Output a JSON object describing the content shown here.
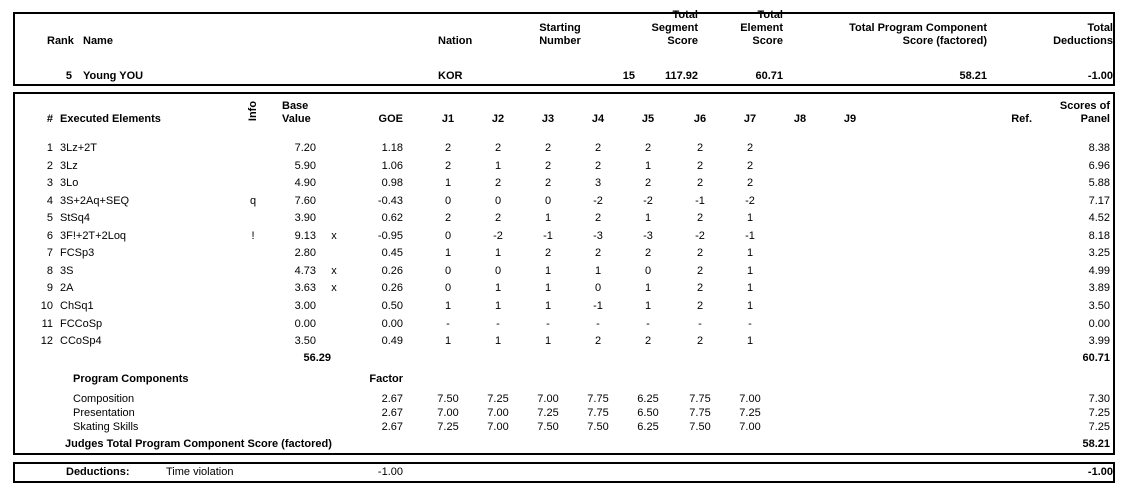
{
  "header": {
    "labels": {
      "rank": "Rank",
      "name": "Name",
      "nation": "Nation",
      "starting_number": "Starting\nNumber",
      "total_segment_score": "Total\nSegment\nScore",
      "total_element_score": "Total\nElement\nScore",
      "total_program_component_score": "Total Program Component\nScore (factored)",
      "total_deductions": "Total\nDeductions"
    },
    "competitor": {
      "rank": "5",
      "name": "Young YOU",
      "nation": "KOR",
      "starting_number": "15",
      "total_segment_score": "117.92",
      "total_element_score": "60.71",
      "total_program_component_score": "58.21",
      "total_deductions": "-1.00"
    }
  },
  "elements": {
    "headers": {
      "num": "#",
      "executed_elements": "Executed Elements",
      "info": "Info",
      "base_value": "Base\nValue",
      "goe": "GOE",
      "judges": [
        "J1",
        "J2",
        "J3",
        "J4",
        "J5",
        "J6",
        "J7",
        "J8",
        "J9"
      ],
      "ref": "Ref.",
      "scores_of_panel": "Scores of\nPanel"
    },
    "rows": [
      {
        "num": "1",
        "name": "3Lz+2T",
        "info": "",
        "base": "7.20",
        "x": "",
        "goe": "1.18",
        "judges": [
          "2",
          "2",
          "2",
          "2",
          "2",
          "2",
          "2",
          "",
          ""
        ],
        "ref": "",
        "panel": "8.38"
      },
      {
        "num": "2",
        "name": "3Lz",
        "info": "",
        "base": "5.90",
        "x": "",
        "goe": "1.06",
        "judges": [
          "2",
          "1",
          "2",
          "2",
          "1",
          "2",
          "2",
          "",
          ""
        ],
        "ref": "",
        "panel": "6.96"
      },
      {
        "num": "3",
        "name": "3Lo",
        "info": "",
        "base": "4.90",
        "x": "",
        "goe": "0.98",
        "judges": [
          "1",
          "2",
          "2",
          "3",
          "2",
          "2",
          "2",
          "",
          ""
        ],
        "ref": "",
        "panel": "5.88"
      },
      {
        "num": "4",
        "name": "3S+2Aq+SEQ",
        "info": "q",
        "base": "7.60",
        "x": "",
        "goe": "-0.43",
        "judges": [
          "0",
          "0",
          "0",
          "-2",
          "-2",
          "-1",
          "-2",
          "",
          ""
        ],
        "ref": "",
        "panel": "7.17"
      },
      {
        "num": "5",
        "name": "StSq4",
        "info": "",
        "base": "3.90",
        "x": "",
        "goe": "0.62",
        "judges": [
          "2",
          "2",
          "1",
          "2",
          "1",
          "2",
          "1",
          "",
          ""
        ],
        "ref": "",
        "panel": "4.52"
      },
      {
        "num": "6",
        "name": "3F!+2T+2Loq",
        "info": "!",
        "base": "9.13",
        "x": "x",
        "goe": "-0.95",
        "judges": [
          "0",
          "-2",
          "-1",
          "-3",
          "-3",
          "-2",
          "-1",
          "",
          ""
        ],
        "ref": "",
        "panel": "8.18"
      },
      {
        "num": "7",
        "name": "FCSp3",
        "info": "",
        "base": "2.80",
        "x": "",
        "goe": "0.45",
        "judges": [
          "1",
          "1",
          "2",
          "2",
          "2",
          "2",
          "1",
          "",
          ""
        ],
        "ref": "",
        "panel": "3.25"
      },
      {
        "num": "8",
        "name": "3S",
        "info": "",
        "base": "4.73",
        "x": "x",
        "goe": "0.26",
        "judges": [
          "0",
          "0",
          "1",
          "1",
          "0",
          "2",
          "1",
          "",
          ""
        ],
        "ref": "",
        "panel": "4.99"
      },
      {
        "num": "9",
        "name": "2A",
        "info": "",
        "base": "3.63",
        "x": "x",
        "goe": "0.26",
        "judges": [
          "0",
          "1",
          "1",
          "0",
          "1",
          "2",
          "1",
          "",
          ""
        ],
        "ref": "",
        "panel": "3.89"
      },
      {
        "num": "10",
        "name": "ChSq1",
        "info": "",
        "base": "3.00",
        "x": "",
        "goe": "0.50",
        "judges": [
          "1",
          "1",
          "1",
          "-1",
          "1",
          "2",
          "1",
          "",
          ""
        ],
        "ref": "",
        "panel": "3.50"
      },
      {
        "num": "11",
        "name": "FCCoSp",
        "info": "",
        "base": "0.00",
        "x": "",
        "goe": "0.00",
        "judges": [
          "-",
          "-",
          "-",
          "-",
          "-",
          "-",
          "-",
          "",
          ""
        ],
        "ref": "",
        "panel": "0.00"
      },
      {
        "num": "12",
        "name": "CCoSp4",
        "info": "",
        "base": "3.50",
        "x": "",
        "goe": "0.49",
        "judges": [
          "1",
          "1",
          "1",
          "2",
          "2",
          "2",
          "1",
          "",
          ""
        ],
        "ref": "",
        "panel": "3.99"
      }
    ],
    "total_base_value": "56.29",
    "total_scores_of_panel": "60.71"
  },
  "components": {
    "title": "Program Components",
    "factor_label": "Factor",
    "rows": [
      {
        "name": "Composition",
        "factor": "2.67",
        "judges": [
          "7.50",
          "7.25",
          "7.00",
          "7.75",
          "6.25",
          "7.75",
          "7.00",
          "",
          ""
        ],
        "panel": "7.30"
      },
      {
        "name": "Presentation",
        "factor": "2.67",
        "judges": [
          "7.00",
          "7.00",
          "7.25",
          "7.75",
          "6.50",
          "7.75",
          "7.25",
          "",
          ""
        ],
        "panel": "7.25"
      },
      {
        "name": "Skating Skills",
        "factor": "2.67",
        "judges": [
          "7.25",
          "7.00",
          "7.50",
          "7.50",
          "6.25",
          "7.50",
          "7.00",
          "",
          ""
        ],
        "panel": "7.25"
      }
    ],
    "total_label": "Judges Total Program Component Score (factored)",
    "total_value": "58.21"
  },
  "deductions": {
    "label": "Deductions:",
    "reason": "Time violation",
    "value": "-1.00",
    "total": "-1.00"
  }
}
